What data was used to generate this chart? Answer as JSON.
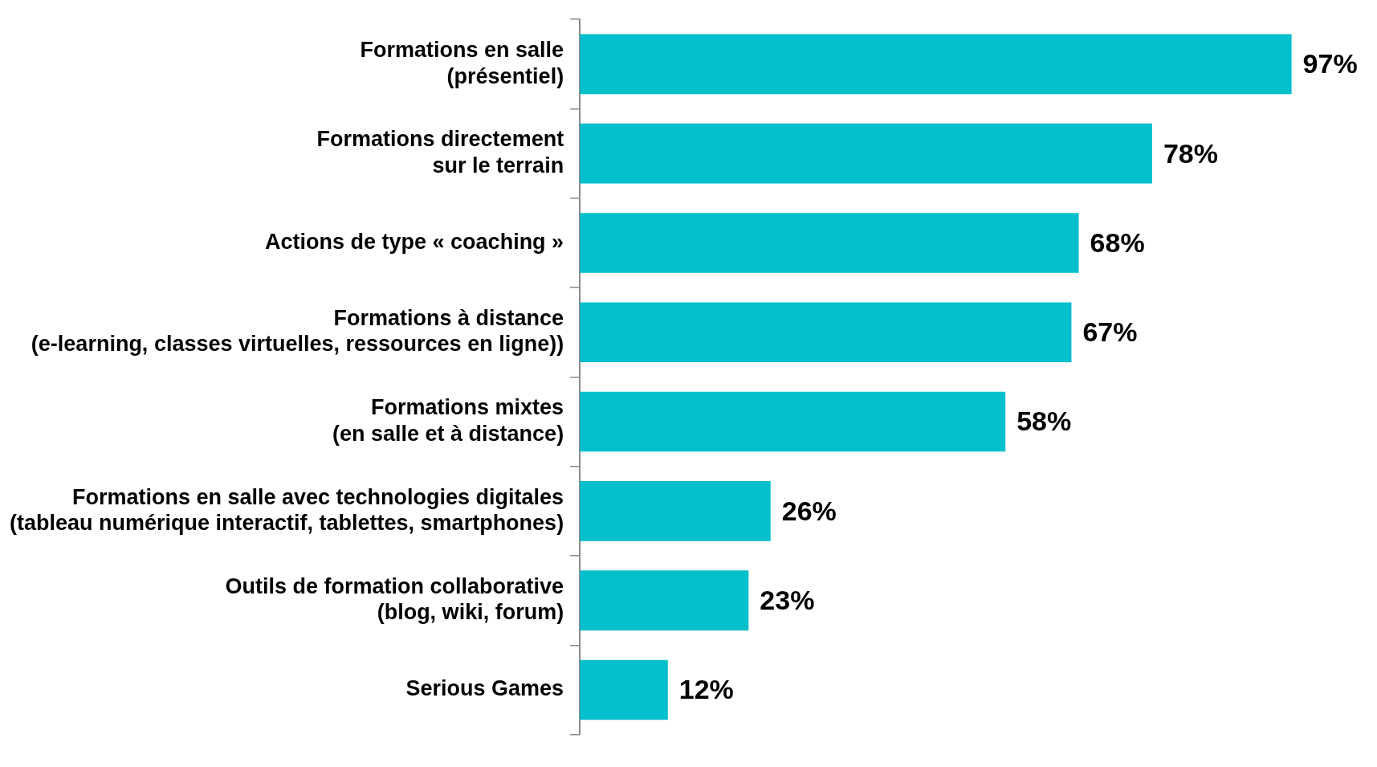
{
  "chart_data": {
    "type": "bar",
    "orientation": "horizontal",
    "categories": [
      "Formations en salle\n(présentiel)",
      "Formations directement\nsur le terrain",
      "Actions de type « coaching »",
      "Formations à distance\n(e-learning, classes virtuelles, ressources en ligne))",
      "Formations mixtes\n(en salle et à distance)",
      "Formations en salle avec technologies digitales\n(tableau numérique interactif, tablettes, smartphones)",
      "Outils de formation collaborative\n(blog, wiki, forum)",
      "Serious Games"
    ],
    "values": [
      97,
      78,
      68,
      67,
      58,
      26,
      23,
      12
    ],
    "value_labels": [
      "97%",
      "78%",
      "68%",
      "67%",
      "58%",
      "26%",
      "23%",
      "12%"
    ],
    "color": "#04bfcc",
    "grid": false,
    "legend": false
  }
}
